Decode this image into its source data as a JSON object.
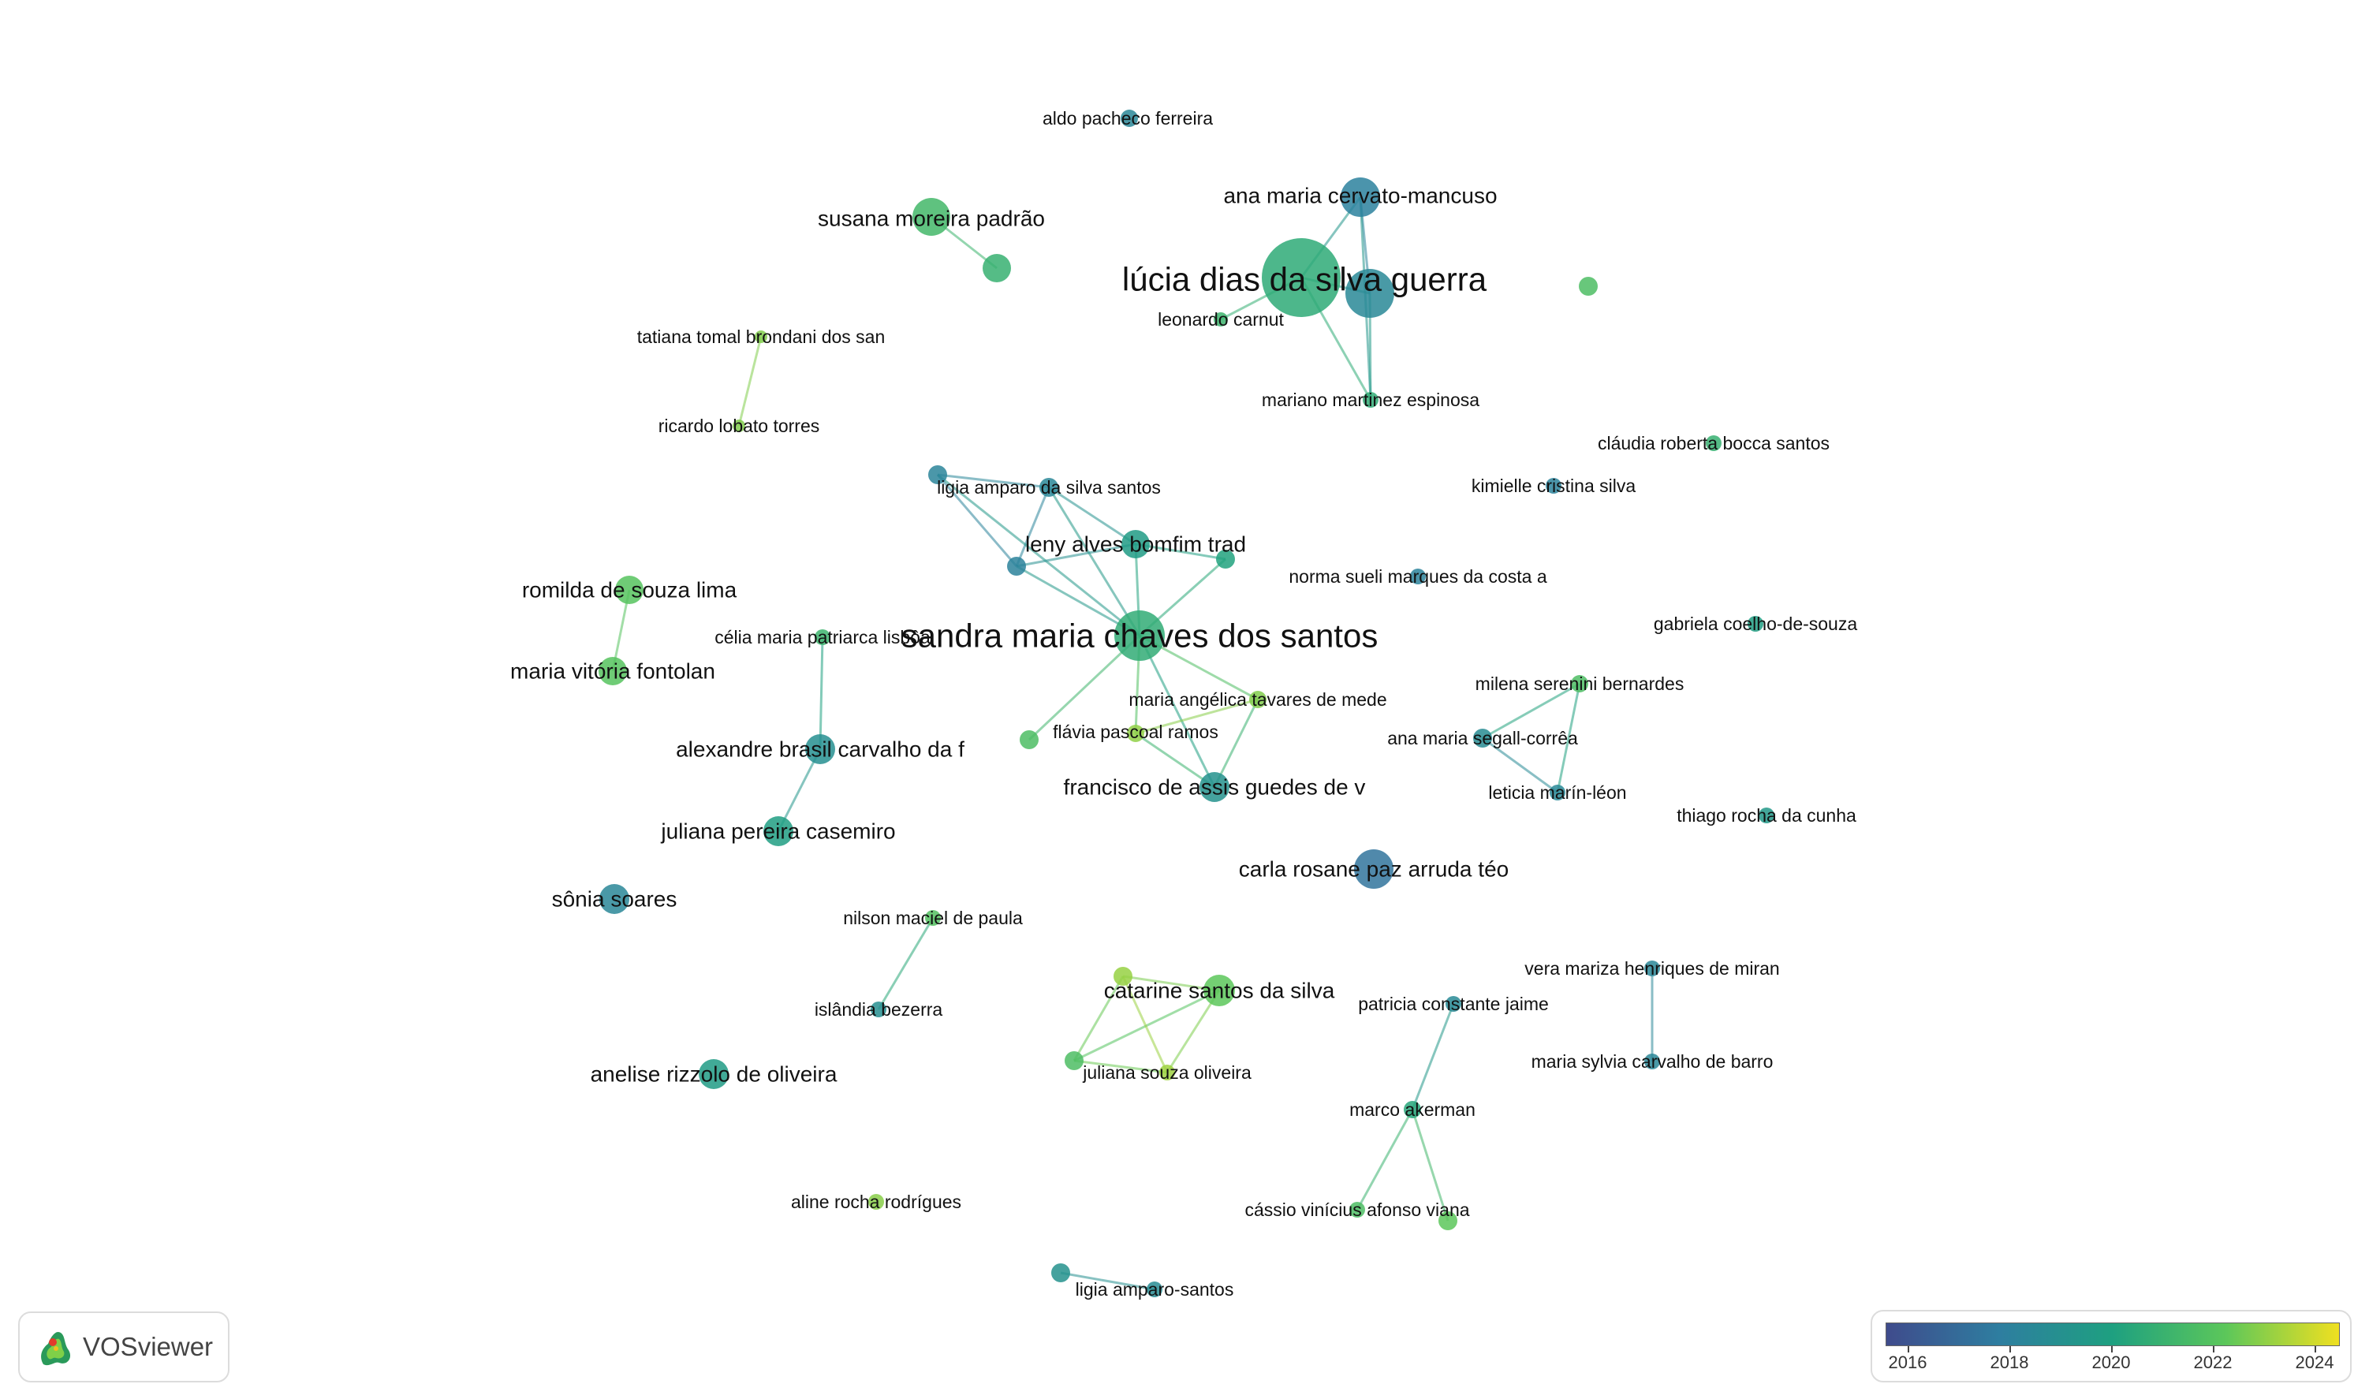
{
  "app": {
    "brand": "VOSviewer"
  },
  "colors": {
    "c2016": "#3f4b8c",
    "c2018": "#2e7ea0",
    "c2020": "#1ea080",
    "c2022": "#5cc75a",
    "c2024": "#f0e020"
  },
  "legend": {
    "labels": [
      "2016",
      "2018",
      "2020",
      "2022",
      "2024"
    ]
  },
  "nodes": [
    {
      "id": "aldo",
      "label": "aldo pacheco ferreira",
      "year": 2018.5
    },
    {
      "id": "anamaria",
      "label": "ana maria cervato-mancuso",
      "year": 2018.2
    },
    {
      "id": "lucia",
      "label": "lúcia dias da silva guerra",
      "year": 2020.5
    },
    {
      "id": "luciaB",
      "label": "",
      "year": 2018.6
    },
    {
      "id": "leonardo",
      "label": "leonardo carnut",
      "year": 2021
    },
    {
      "id": "mariano",
      "label": "mariano martinez espinosa",
      "year": 2020.6
    },
    {
      "id": "isolated1",
      "label": "",
      "year": 2021.5
    },
    {
      "id": "susana",
      "label": "susana moreira padrão",
      "year": 2021.2
    },
    {
      "id": "susanaB",
      "label": "",
      "year": 2020.8
    },
    {
      "id": "tatiana",
      "label": "tatiana tomal brondani dos san",
      "year": 2022.5
    },
    {
      "id": "ricardo",
      "label": "ricardo lobato torres",
      "year": 2022.5
    },
    {
      "id": "ligiaSilva",
      "label": "ligia amparo da silva santos",
      "year": 2018.5
    },
    {
      "id": "ligiaB",
      "label": "",
      "year": 2018.4
    },
    {
      "id": "leny",
      "label": "leny alves bomfim trad",
      "year": 2019.7
    },
    {
      "id": "lenyB",
      "label": "",
      "year": 2018.3
    },
    {
      "id": "lenyC",
      "label": "",
      "year": 2020.1
    },
    {
      "id": "sandra",
      "label": "sandra maria chaves dos santos",
      "year": 2020.6
    },
    {
      "id": "mariaAngelica",
      "label": "maria angélica tavares de mede",
      "year": 2022.5
    },
    {
      "id": "flavia",
      "label": "flávia pascoal ramos",
      "year": 2022.7
    },
    {
      "id": "flaviaB",
      "label": "",
      "year": 2021.5
    },
    {
      "id": "francisco",
      "label": "francisco de assis guedes de v",
      "year": 2019.2
    },
    {
      "id": "romilda",
      "label": "romilda de souza lima",
      "year": 2021.8
    },
    {
      "id": "mariaVitoria",
      "label": "maria vitória fontolan",
      "year": 2021.8
    },
    {
      "id": "celia",
      "label": "célia maria patriarca lisbôa",
      "year": 2021
    },
    {
      "id": "alexandre",
      "label": "alexandre brasil carvalho da f",
      "year": 2019
    },
    {
      "id": "juliana",
      "label": "juliana pereira casemiro",
      "year": 2019.8
    },
    {
      "id": "sonia",
      "label": "sônia soares",
      "year": 2018.5
    },
    {
      "id": "nilson",
      "label": "nilson maciel de paula",
      "year": 2021.7
    },
    {
      "id": "islandia",
      "label": "islândia bezerra",
      "year": 2019
    },
    {
      "id": "anelise",
      "label": "anelise rizzolo de oliveira",
      "year": 2019.7
    },
    {
      "id": "catarine",
      "label": "catarine santos da silva",
      "year": 2022
    },
    {
      "id": "catarineB",
      "label": "",
      "year": 2022.8
    },
    {
      "id": "catarineC",
      "label": "",
      "year": 2021.5
    },
    {
      "id": "julianaSouza",
      "label": "juliana souza oliveira",
      "year": 2022.9
    },
    {
      "id": "aline",
      "label": "aline rocha rodrígues",
      "year": 2022.6
    },
    {
      "id": "ligiaAmparo",
      "label": "ligia amparo-santos",
      "year": 2018.8
    },
    {
      "id": "ligiaAmparoB",
      "label": "",
      "year": 2019.2
    },
    {
      "id": "norma",
      "label": "norma sueli marques da costa a",
      "year": 2018.3
    },
    {
      "id": "claudia",
      "label": "cláudia roberta bocca santos",
      "year": 2020.8
    },
    {
      "id": "kimielle",
      "label": "kimielle cristina silva",
      "year": 2018.3
    },
    {
      "id": "gabriela",
      "label": "gabriela coelho-de-souza",
      "year": 2019.8
    },
    {
      "id": "milena",
      "label": "milena serenini bernardes",
      "year": 2021.5
    },
    {
      "id": "anaSegall",
      "label": "ana maria segall-corrêa",
      "year": 2018.8
    },
    {
      "id": "leticia",
      "label": "leticia marín-léon",
      "year": 2018.6
    },
    {
      "id": "thiago",
      "label": "thiago rocha da cunha",
      "year": 2019.5
    },
    {
      "id": "carla",
      "label": "carla rosane paz arruda téo",
      "year": 2017.6
    },
    {
      "id": "vera",
      "label": "vera mariza henriques de miran",
      "year": 2018.5
    },
    {
      "id": "mariaSylvia",
      "label": "maria sylvia carvalho de barro",
      "year": 2018.5
    },
    {
      "id": "patricia",
      "label": "patricia constante jaime",
      "year": 2018.7
    },
    {
      "id": "marco",
      "label": "marco akerman",
      "year": 2020.3
    },
    {
      "id": "cassio",
      "label": "cássio vinícius afonso viana",
      "year": 2021.5
    },
    {
      "id": "cassioB",
      "label": "",
      "year": 2022
    }
  ],
  "edges": [
    [
      "lucia",
      "anamaria"
    ],
    [
      "lucia",
      "luciaB"
    ],
    [
      "lucia",
      "leonardo"
    ],
    [
      "lucia",
      "mariano"
    ],
    [
      "anamaria",
      "luciaB"
    ],
    [
      "anamaria",
      "mariano"
    ],
    [
      "luciaB",
      "mariano"
    ],
    [
      "susana",
      "susanaB"
    ],
    [
      "tatiana",
      "ricardo"
    ],
    [
      "ligiaB",
      "ligiaSilva"
    ],
    [
      "ligiaB",
      "lenyB"
    ],
    [
      "ligiaSilva",
      "leny"
    ],
    [
      "ligiaSilva",
      "lenyB"
    ],
    [
      "ligiaSilva",
      "sandra"
    ],
    [
      "ligiaB",
      "sandra"
    ],
    [
      "leny",
      "lenyB"
    ],
    [
      "leny",
      "lenyC"
    ],
    [
      "leny",
      "sandra"
    ],
    [
      "lenyB",
      "sandra"
    ],
    [
      "lenyC",
      "sandra"
    ],
    [
      "sandra",
      "mariaAngelica"
    ],
    [
      "sandra",
      "flavia"
    ],
    [
      "sandra",
      "flaviaB"
    ],
    [
      "sandra",
      "francisco"
    ],
    [
      "mariaAngelica",
      "francisco"
    ],
    [
      "flavia",
      "francisco"
    ],
    [
      "mariaAngelica",
      "flavia"
    ],
    [
      "romilda",
      "mariaVitoria"
    ],
    [
      "celia",
      "alexandre"
    ],
    [
      "alexandre",
      "juliana"
    ],
    [
      "nilson",
      "islandia"
    ],
    [
      "catarine",
      "catarineB"
    ],
    [
      "catarine",
      "catarineC"
    ],
    [
      "catarine",
      "julianaSouza"
    ],
    [
      "catarineB",
      "catarineC"
    ],
    [
      "catarineB",
      "julianaSouza"
    ],
    [
      "catarineC",
      "julianaSouza"
    ],
    [
      "ligiaAmparo",
      "ligiaAmparoB"
    ],
    [
      "milena",
      "anaSegall"
    ],
    [
      "milena",
      "leticia"
    ],
    [
      "anaSegall",
      "leticia"
    ],
    [
      "vera",
      "mariaSylvia"
    ],
    [
      "patricia",
      "marco"
    ],
    [
      "marco",
      "cassio"
    ],
    [
      "marco",
      "cassioB"
    ]
  ]
}
